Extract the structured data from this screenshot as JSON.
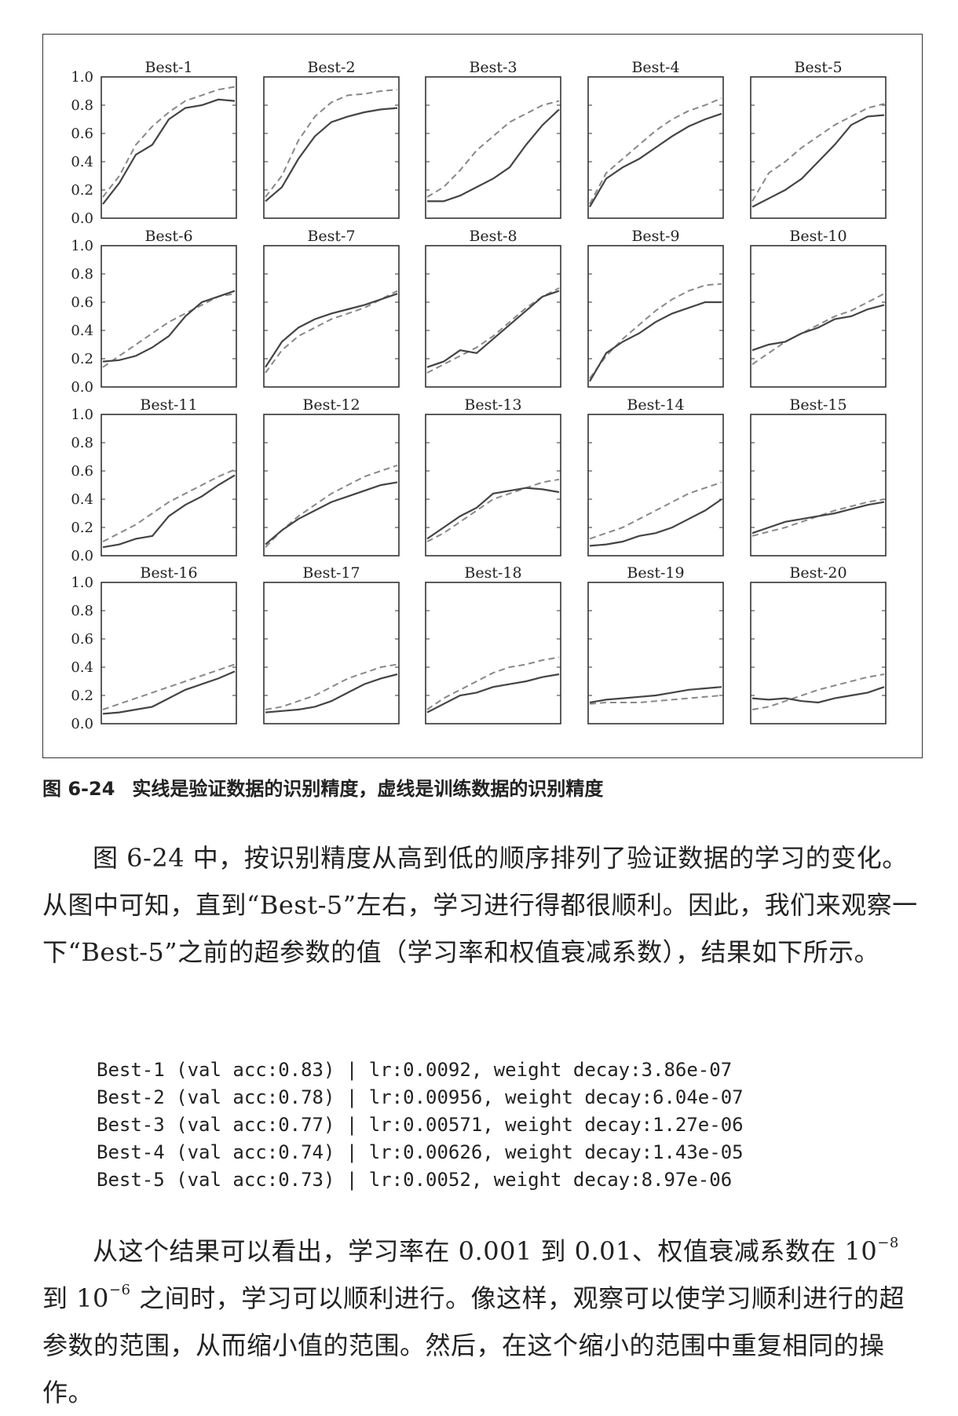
{
  "chart_data": {
    "type": "line",
    "title": "",
    "ylim": [
      0,
      1
    ],
    "yticks": [
      "0.0",
      "0.2",
      "0.4",
      "0.6",
      "0.8",
      "1.0"
    ],
    "legend": "solid: validation accuracy; dashed: training accuracy (from caption)",
    "panels": [
      {
        "title": "Best-1",
        "val": [
          0.1,
          0.25,
          0.45,
          0.52,
          0.7,
          0.78,
          0.8,
          0.84,
          0.83
        ],
        "train": [
          0.15,
          0.3,
          0.52,
          0.65,
          0.75,
          0.83,
          0.87,
          0.91,
          0.93
        ]
      },
      {
        "title": "Best-2",
        "val": [
          0.12,
          0.22,
          0.42,
          0.58,
          0.68,
          0.72,
          0.75,
          0.77,
          0.78
        ],
        "train": [
          0.15,
          0.3,
          0.55,
          0.72,
          0.82,
          0.87,
          0.88,
          0.9,
          0.91
        ]
      },
      {
        "title": "Best-3",
        "val": [
          0.12,
          0.12,
          0.16,
          0.22,
          0.28,
          0.36,
          0.52,
          0.66,
          0.77
        ],
        "train": [
          0.15,
          0.22,
          0.34,
          0.48,
          0.58,
          0.68,
          0.74,
          0.8,
          0.83
        ]
      },
      {
        "title": "Best-4",
        "val": [
          0.08,
          0.28,
          0.36,
          0.42,
          0.5,
          0.58,
          0.65,
          0.7,
          0.74
        ],
        "train": [
          0.1,
          0.32,
          0.42,
          0.52,
          0.62,
          0.7,
          0.76,
          0.8,
          0.85
        ]
      },
      {
        "title": "Best-5",
        "val": [
          0.08,
          0.14,
          0.2,
          0.28,
          0.4,
          0.52,
          0.66,
          0.72,
          0.73
        ],
        "train": [
          0.12,
          0.32,
          0.4,
          0.5,
          0.58,
          0.66,
          0.72,
          0.78,
          0.81
        ]
      },
      {
        "title": "Best-6",
        "val": [
          0.18,
          0.19,
          0.22,
          0.28,
          0.36,
          0.5,
          0.6,
          0.64,
          0.68
        ],
        "train": [
          0.14,
          0.22,
          0.3,
          0.38,
          0.46,
          0.52,
          0.58,
          0.64,
          0.66
        ]
      },
      {
        "title": "Best-7",
        "val": [
          0.14,
          0.32,
          0.42,
          0.48,
          0.52,
          0.55,
          0.58,
          0.62,
          0.66
        ],
        "train": [
          0.1,
          0.26,
          0.36,
          0.42,
          0.48,
          0.52,
          0.56,
          0.62,
          0.68
        ]
      },
      {
        "title": "Best-8",
        "val": [
          0.14,
          0.18,
          0.26,
          0.24,
          0.34,
          0.44,
          0.54,
          0.64,
          0.68
        ],
        "train": [
          0.1,
          0.16,
          0.22,
          0.28,
          0.36,
          0.46,
          0.56,
          0.64,
          0.7
        ]
      },
      {
        "title": "Best-9",
        "val": [
          0.04,
          0.24,
          0.32,
          0.38,
          0.46,
          0.52,
          0.56,
          0.6,
          0.6
        ],
        "train": [
          0.06,
          0.22,
          0.34,
          0.44,
          0.54,
          0.62,
          0.68,
          0.72,
          0.73
        ]
      },
      {
        "title": "Best-10",
        "val": [
          0.26,
          0.3,
          0.32,
          0.38,
          0.42,
          0.48,
          0.5,
          0.55,
          0.58
        ],
        "train": [
          0.16,
          0.24,
          0.32,
          0.38,
          0.44,
          0.5,
          0.54,
          0.6,
          0.66
        ]
      },
      {
        "title": "Best-11",
        "val": [
          0.06,
          0.08,
          0.12,
          0.14,
          0.28,
          0.36,
          0.42,
          0.5,
          0.57
        ],
        "train": [
          0.1,
          0.16,
          0.22,
          0.3,
          0.38,
          0.44,
          0.5,
          0.56,
          0.61
        ]
      },
      {
        "title": "Best-12",
        "val": [
          0.08,
          0.18,
          0.26,
          0.32,
          0.38,
          0.42,
          0.46,
          0.5,
          0.52
        ],
        "train": [
          0.06,
          0.18,
          0.28,
          0.36,
          0.44,
          0.5,
          0.56,
          0.6,
          0.64
        ]
      },
      {
        "title": "Best-13",
        "val": [
          0.12,
          0.2,
          0.28,
          0.34,
          0.44,
          0.46,
          0.48,
          0.47,
          0.45
        ],
        "train": [
          0.1,
          0.16,
          0.24,
          0.32,
          0.4,
          0.44,
          0.48,
          0.52,
          0.54
        ]
      },
      {
        "title": "Best-14",
        "val": [
          0.07,
          0.08,
          0.1,
          0.14,
          0.16,
          0.2,
          0.26,
          0.32,
          0.4
        ],
        "train": [
          0.12,
          0.16,
          0.2,
          0.26,
          0.32,
          0.38,
          0.44,
          0.48,
          0.52
        ]
      },
      {
        "title": "Best-15",
        "val": [
          0.16,
          0.2,
          0.24,
          0.26,
          0.28,
          0.3,
          0.33,
          0.36,
          0.38
        ],
        "train": [
          0.14,
          0.17,
          0.2,
          0.24,
          0.28,
          0.32,
          0.35,
          0.38,
          0.4
        ]
      },
      {
        "title": "Best-16",
        "val": [
          0.07,
          0.08,
          0.1,
          0.12,
          0.18,
          0.24,
          0.28,
          0.32,
          0.37
        ],
        "train": [
          0.1,
          0.14,
          0.18,
          0.22,
          0.26,
          0.3,
          0.34,
          0.38,
          0.42
        ]
      },
      {
        "title": "Best-17",
        "val": [
          0.08,
          0.09,
          0.1,
          0.12,
          0.16,
          0.22,
          0.28,
          0.32,
          0.35
        ],
        "train": [
          0.1,
          0.12,
          0.16,
          0.2,
          0.26,
          0.32,
          0.36,
          0.4,
          0.42
        ]
      },
      {
        "title": "Best-18",
        "val": [
          0.08,
          0.14,
          0.2,
          0.22,
          0.26,
          0.28,
          0.3,
          0.33,
          0.35
        ],
        "train": [
          0.1,
          0.18,
          0.24,
          0.3,
          0.36,
          0.4,
          0.42,
          0.45,
          0.47
        ]
      },
      {
        "title": "Best-19",
        "val": [
          0.15,
          0.17,
          0.18,
          0.19,
          0.2,
          0.22,
          0.24,
          0.25,
          0.26
        ],
        "train": [
          0.14,
          0.15,
          0.15,
          0.15,
          0.16,
          0.17,
          0.18,
          0.19,
          0.2
        ]
      },
      {
        "title": "Best-20",
        "val": [
          0.18,
          0.17,
          0.18,
          0.16,
          0.15,
          0.18,
          0.2,
          0.22,
          0.26
        ],
        "train": [
          0.1,
          0.12,
          0.16,
          0.2,
          0.24,
          0.27,
          0.3,
          0.33,
          0.35
        ]
      }
    ]
  },
  "caption": {
    "number": "图 6-24",
    "text": "实线是验证数据的识别精度，虚线是训练数据的识别精度"
  },
  "paragraph1": "图 6-24 中，按识别精度从高到低的顺序排列了验证数据的学习的变化。从图中可知，直到“Best-5”左右，学习进行得都很顺利。因此，我们来观察一下“Best-5”之前的超参数的值（学习率和权值衰减系数），结果如下所示。",
  "code_lines": [
    "Best-1 (val acc:0.83) | lr:0.0092, weight decay:3.86e-07",
    "Best-2 (val acc:0.78) | lr:0.00956, weight decay:6.04e-07",
    "Best-3 (val acc:0.77) | lr:0.00571, weight decay:1.27e-06",
    "Best-4 (val acc:0.74) | lr:0.00626, weight decay:1.43e-05",
    "Best-5 (val acc:0.73) | lr:0.0052, weight decay:8.97e-06"
  ],
  "paragraph2": {
    "part1": "从这个结果可以看出，学习率在 0.001 到 0.01、权值衰减系数在 10",
    "exp1": "−8",
    "part2": " 到 10",
    "exp2": "−6",
    "part3": " 之间时，学习可以顺利进行。像这样，观察可以使学习顺利进行的超参数的范围，从而缩小值的范围。然后，在这个缩小的范围中重复相同的操作。"
  },
  "colors": {
    "solid_line": "#444444",
    "dashed_line": "#888888",
    "axis": "#333333"
  }
}
